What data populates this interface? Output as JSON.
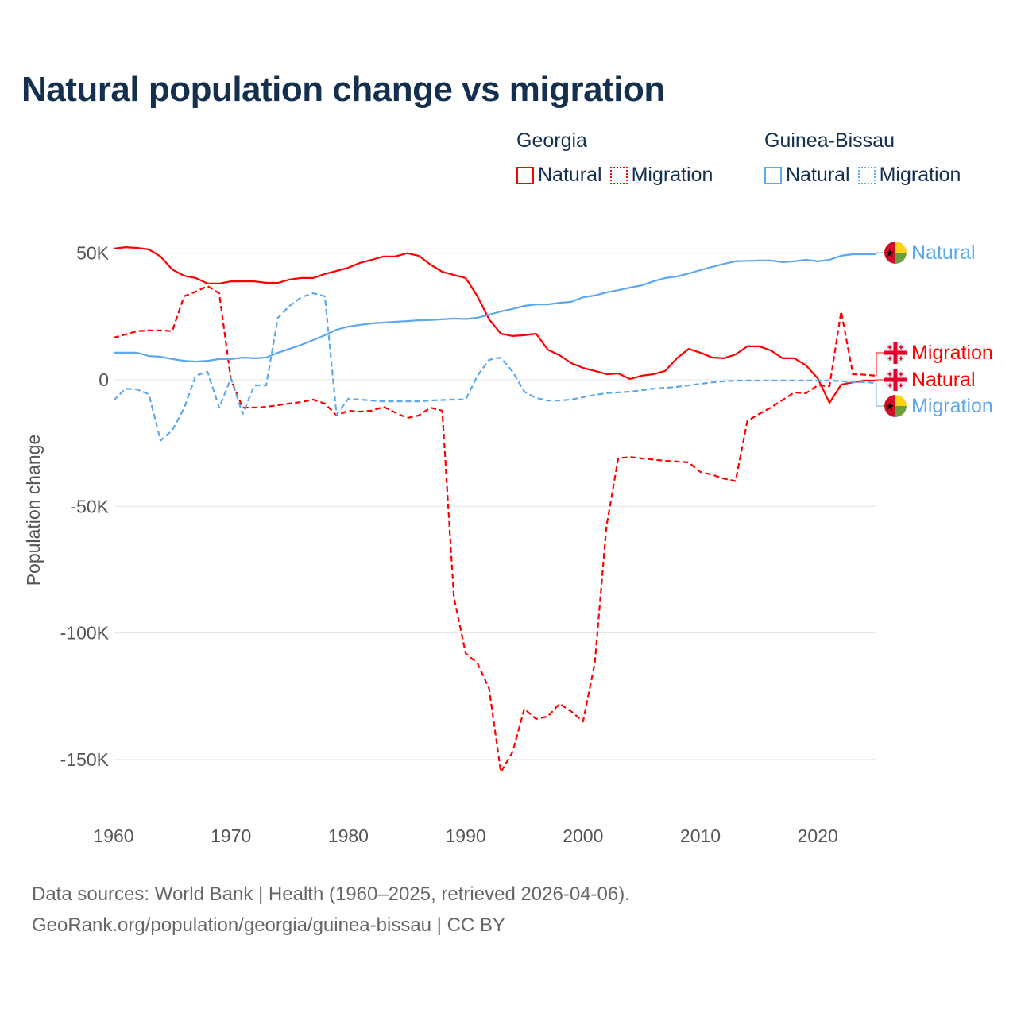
{
  "title": "Natural population change vs migration",
  "legend": {
    "groups": [
      {
        "name": "Georgia",
        "color": "#ff0000",
        "items": [
          "Natural",
          "Migration"
        ]
      },
      {
        "name": "Guinea-Bissau",
        "color": "#5ea8ee",
        "items": [
          "Natural",
          "Migration"
        ]
      }
    ]
  },
  "footer": {
    "line1": "Data sources: World Bank | Health (1960–2025, retrieved 2026-04-06).",
    "line2": "GeoRank.org/population/georgia/guinea-bissau | CC BY"
  },
  "chart_data": {
    "type": "line",
    "title": "Natural population change vs migration",
    "xlabel": "",
    "ylabel": "Population change",
    "xlim": [
      1960,
      2025
    ],
    "ylim": [
      -165000,
      55000
    ],
    "x_ticks": [
      "1960",
      "1970",
      "1980",
      "1990",
      "2000",
      "2010",
      "2020"
    ],
    "y_ticks": [
      {
        "value": 50000,
        "label": "50K"
      },
      {
        "value": 0,
        "label": "0"
      },
      {
        "value": -50000,
        "label": "-50K"
      },
      {
        "value": -100000,
        "label": "-100K"
      },
      {
        "value": -150000,
        "label": "-150K"
      }
    ],
    "grid": true,
    "x_start": 1960,
    "series": [
      {
        "name": "Georgia Natural",
        "country": "Georgia",
        "label": "Natural",
        "color": "#ff0000",
        "dashed": false,
        "values": [
          51800,
          52400,
          52100,
          51500,
          48700,
          43600,
          41100,
          40200,
          38000,
          38000,
          38900,
          38900,
          38900,
          38300,
          38300,
          39600,
          40200,
          40200,
          41800,
          43000,
          44300,
          46200,
          47400,
          48700,
          48700,
          50000,
          49000,
          45500,
          42700,
          41400,
          40200,
          33000,
          23900,
          18200,
          17300,
          17600,
          18200,
          11900,
          9700,
          6600,
          4700,
          3500,
          2200,
          2500,
          300,
          1600,
          2200,
          3500,
          8500,
          12200,
          10700,
          8800,
          8500,
          10000,
          13200,
          13200,
          11600,
          8500,
          8500,
          5700,
          600,
          -9100,
          -1900,
          -1000,
          -300,
          -300
        ]
      },
      {
        "name": "Georgia Migration",
        "country": "Georgia",
        "label": "Migration",
        "color": "#ff0000",
        "dashed": true,
        "values": [
          16600,
          17900,
          19200,
          19500,
          19500,
          19200,
          33000,
          34800,
          37000,
          34200,
          0,
          -11000,
          -11000,
          -10700,
          -10000,
          -9400,
          -8800,
          -7800,
          -9400,
          -14100,
          -12200,
          -12600,
          -12200,
          -10700,
          -12900,
          -15100,
          -14100,
          -11000,
          -12200,
          -86000,
          -108000,
          -112000,
          -122000,
          -155000,
          -147000,
          -130000,
          -134000,
          -133000,
          -128000,
          -131000,
          -135000,
          -112000,
          -58000,
          -31000,
          -30500,
          -31000,
          -31500,
          -32000,
          -32300,
          -32600,
          -36400,
          -37500,
          -39000,
          -40000,
          -16300,
          -13500,
          -11000,
          -8000,
          -5000,
          -5300,
          -2200,
          -2500,
          27000,
          2200,
          2000,
          1600
        ]
      },
      {
        "name": "Guinea-Bissau Natural",
        "country": "Guinea-Bissau",
        "label": "Natural",
        "color": "#5ea8ee",
        "dashed": false,
        "values": [
          10700,
          10700,
          10700,
          9400,
          9100,
          8200,
          7500,
          7200,
          7500,
          8200,
          8200,
          8800,
          8500,
          8800,
          10700,
          12200,
          13800,
          15700,
          17600,
          19800,
          21000,
          21700,
          22300,
          22600,
          22900,
          23200,
          23500,
          23600,
          23900,
          24200,
          24000,
          24500,
          25700,
          27000,
          28000,
          29200,
          29800,
          29800,
          30400,
          30800,
          32600,
          33300,
          34500,
          35400,
          36400,
          37300,
          38900,
          40200,
          40800,
          42000,
          43300,
          44600,
          45800,
          46800,
          47000,
          47100,
          47100,
          46500,
          46800,
          47400,
          46800,
          47400,
          49000,
          49600,
          49600,
          49600
        ]
      },
      {
        "name": "Guinea-Bissau Migration",
        "country": "Guinea-Bissau",
        "label": "Migration",
        "color": "#5ea8ee",
        "dashed": true,
        "values": [
          -8200,
          -3500,
          -3800,
          -5700,
          -24000,
          -20000,
          -11300,
          1600,
          3200,
          -11000,
          600,
          -13500,
          -2200,
          -2200,
          24500,
          29200,
          32600,
          34200,
          33000,
          -13800,
          -7500,
          -7800,
          -8200,
          -8500,
          -8500,
          -8500,
          -8500,
          -8200,
          -8000,
          -7800,
          -7800,
          1600,
          7900,
          8800,
          3200,
          -4700,
          -7200,
          -8200,
          -8200,
          -7800,
          -6900,
          -6000,
          -5300,
          -5000,
          -4700,
          -4100,
          -3500,
          -3200,
          -2800,
          -2200,
          -1600,
          -1000,
          -600,
          -300,
          -300,
          -300,
          -300,
          -300,
          -300,
          -300,
          -300,
          -300,
          -600,
          -900,
          -900,
          -1300
        ]
      }
    ],
    "end_labels": [
      {
        "text": "Natural",
        "series": 2
      },
      {
        "text": "Migration",
        "series": 1
      },
      {
        "text": "Natural",
        "series": 0
      },
      {
        "text": "Migration",
        "series": 3
      }
    ]
  }
}
